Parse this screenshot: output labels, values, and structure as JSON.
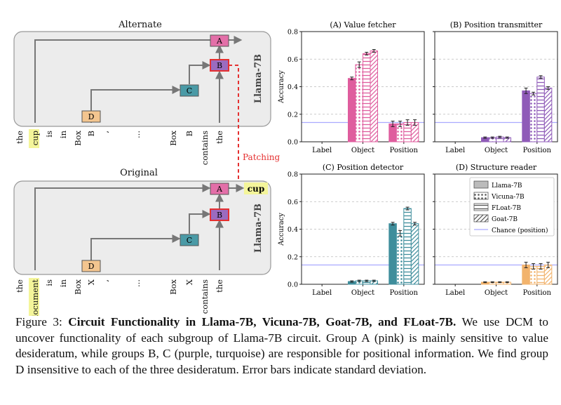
{
  "diagram": {
    "alternate_title": "Alternate",
    "original_title": "Original",
    "model_label": "Llama-7B",
    "patching_label": "Patching",
    "output_label": "cup",
    "nodes": {
      "A": "A",
      "B": "B",
      "C": "C",
      "D": "D"
    },
    "alternate_tokens": [
      "the",
      "cup",
      "is",
      "in",
      "Box",
      "B",
      ",",
      "...",
      "Box",
      "B",
      "contains",
      "the"
    ],
    "original_tokens": [
      "the",
      "document",
      "is",
      "in",
      "Box",
      "X",
      ",",
      "...",
      "Box",
      "X",
      "contains",
      "the"
    ],
    "colors": {
      "A": "#e36fa8",
      "B": "#9b6bbf",
      "C": "#4a9aa6",
      "D": "#f3c58f",
      "highlight": "#f4f59a",
      "patch": "#e53030"
    }
  },
  "chart_data": [
    {
      "type": "bar",
      "title": "(A) Value fetcher",
      "ylabel": "Accuracy",
      "ylim": [
        0,
        0.8
      ],
      "categories": [
        "Label",
        "Object",
        "Position"
      ],
      "group_color": "#df5d9e",
      "series": [
        {
          "name": "Llama-7B",
          "values": [
            0.0,
            0.46,
            0.13
          ],
          "err": [
            0,
            0.01,
            0.02
          ]
        },
        {
          "name": "Vicuna-7B",
          "values": [
            0.0,
            0.56,
            0.13
          ],
          "err": [
            0,
            0.02,
            0.02
          ]
        },
        {
          "name": "FLoat-7B",
          "values": [
            0.0,
            0.64,
            0.14
          ],
          "err": [
            0,
            0.01,
            0.02
          ]
        },
        {
          "name": "Goat-7B",
          "values": [
            0.0,
            0.66,
            0.14
          ],
          "err": [
            0,
            0.01,
            0.02
          ]
        }
      ],
      "chance": 0.14
    },
    {
      "type": "bar",
      "title": "(B) Position transmitter",
      "ylabel": "",
      "ylim": [
        0,
        0.8
      ],
      "categories": [
        "Label",
        "Object",
        "Position"
      ],
      "group_color": "#8f5bb8",
      "series": [
        {
          "name": "Llama-7B",
          "values": [
            0.0,
            0.03,
            0.37
          ],
          "err": [
            0,
            0.005,
            0.02
          ]
        },
        {
          "name": "Vicuna-7B",
          "values": [
            0.0,
            0.03,
            0.35
          ],
          "err": [
            0,
            0.005,
            0.01
          ]
        },
        {
          "name": "FLoat-7B",
          "values": [
            0.0,
            0.035,
            0.47
          ],
          "err": [
            0,
            0.005,
            0.01
          ]
        },
        {
          "name": "Goat-7B",
          "values": [
            0.0,
            0.03,
            0.39
          ],
          "err": [
            0,
            0.005,
            0.01
          ]
        }
      ],
      "chance": 0.14
    },
    {
      "type": "bar",
      "title": "(C) Position detector",
      "ylabel": "Accuracy",
      "ylim": [
        0,
        0.8
      ],
      "categories": [
        "Label",
        "Object",
        "Position"
      ],
      "group_color": "#3f8e9c",
      "series": [
        {
          "name": "Llama-7B",
          "values": [
            0.0,
            0.02,
            0.44
          ],
          "err": [
            0,
            0.005,
            0.01
          ]
        },
        {
          "name": "Vicuna-7B",
          "values": [
            0.0,
            0.025,
            0.37
          ],
          "err": [
            0,
            0.005,
            0.02
          ]
        },
        {
          "name": "FLoat-7B",
          "values": [
            0.0,
            0.025,
            0.55
          ],
          "err": [
            0,
            0.005,
            0.01
          ]
        },
        {
          "name": "Goat-7B",
          "values": [
            0.0,
            0.025,
            0.44
          ],
          "err": [
            0,
            0.005,
            0.01
          ]
        }
      ],
      "chance": 0.14
    },
    {
      "type": "bar",
      "title": "(D) Structure reader",
      "ylabel": "",
      "ylim": [
        0,
        0.8
      ],
      "categories": [
        "Label",
        "Object",
        "Position"
      ],
      "group_color": "#f2b36c",
      "series": [
        {
          "name": "Llama-7B",
          "values": [
            0.0,
            0.015,
            0.14
          ],
          "err": [
            0,
            0.003,
            0.02
          ]
        },
        {
          "name": "Vicuna-7B",
          "values": [
            0.0,
            0.015,
            0.13
          ],
          "err": [
            0,
            0.003,
            0.02
          ]
        },
        {
          "name": "FLoat-7B",
          "values": [
            0.0,
            0.015,
            0.13
          ],
          "err": [
            0,
            0.003,
            0.02
          ]
        },
        {
          "name": "Goat-7B",
          "values": [
            0.0,
            0.015,
            0.14
          ],
          "err": [
            0,
            0.003,
            0.02
          ]
        }
      ],
      "chance": 0.14
    }
  ],
  "legend": {
    "entries": [
      "Llama-7B",
      "Vicuna-7B",
      "FLoat-7B",
      "Goat-7B",
      "Chance (position)"
    ],
    "placement": "top-right of panel D",
    "chance_color": "#a9a9ff"
  },
  "caption": {
    "prefix": "Figure 3: ",
    "bold": "Circuit Functionality in Llama-7B, Vicuna-7B, Goat-7B, and FLoat-7B.",
    "rest": " We use DCM to uncover functionality of each subgroup of Llama-7B circuit. Group A (pink) is mainly sensitive to value desideratum, while groups B, C (purple, turquoise) are responsible for positional information. We find group D insensitive to each of the three desideratum. Error bars indicate standard deviation."
  }
}
